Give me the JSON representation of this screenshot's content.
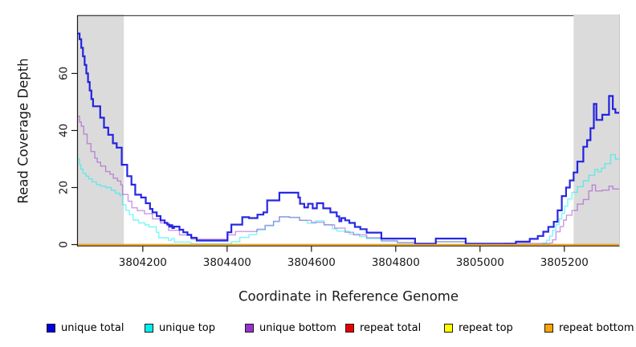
{
  "chart_data": {
    "type": "line",
    "subtype": "step-coverage",
    "title": "",
    "xlabel": "Coordinate in Reference Genome",
    "ylabel": "Read Coverage Depth",
    "xlim": [
      3804046,
      3805330
    ],
    "ylim": [
      0,
      80.4
    ],
    "grid": false,
    "x_tick_values": [
      3804200,
      3804400,
      3804600,
      3804800,
      3805000,
      3805200
    ],
    "x_tick_labels": [
      "3804200",
      "3804400",
      "3804600",
      "3804800",
      "3805000",
      "3805200"
    ],
    "y_tick_values": [
      0,
      20,
      40,
      60
    ],
    "y_tick_labels": [
      "0",
      "20",
      "40",
      "60"
    ],
    "shade_color": "#dbdbdb",
    "axis_color": "#1a1a1a",
    "box_color": "#4d4d4d",
    "shaded_regions": [
      {
        "x0": 3804046,
        "x1": 3804155,
        "meaning": "repeat-masked flank"
      },
      {
        "x0": 3805222,
        "x1": 3805330,
        "meaning": "repeat-masked flank"
      }
    ],
    "series": [
      {
        "name": "unique total",
        "color": "#0202df",
        "points": [
          [
            3804046,
            74
          ],
          [
            3804050,
            72
          ],
          [
            3804054,
            69
          ],
          [
            3804058,
            66
          ],
          [
            3804062,
            63
          ],
          [
            3804066,
            60
          ],
          [
            3804070,
            57
          ],
          [
            3804074,
            54
          ],
          [
            3804078,
            51
          ],
          [
            3804082,
            48.5
          ],
          [
            3804099,
            44.5
          ],
          [
            3804108,
            41
          ],
          [
            3804118,
            38.5
          ],
          [
            3804129,
            35.5
          ],
          [
            3804138,
            34
          ],
          [
            3804150,
            28
          ],
          [
            3804163,
            24
          ],
          [
            3804173,
            21
          ],
          [
            3804182,
            17.5
          ],
          [
            3804196,
            16.5
          ],
          [
            3804207,
            14.5
          ],
          [
            3804217,
            12.5
          ],
          [
            3804223,
            11.3
          ],
          [
            3804233,
            10
          ],
          [
            3804242,
            8.5
          ],
          [
            3804252,
            7.6
          ],
          [
            3804258,
            7
          ],
          [
            3804263,
            6.3
          ],
          [
            3804266,
            6.8
          ],
          [
            3804270,
            5.8
          ],
          [
            3804274,
            6.3
          ],
          [
            3804287,
            5.2
          ],
          [
            3804296,
            4.3
          ],
          [
            3804306,
            3.4
          ],
          [
            3804315,
            2.4
          ],
          [
            3804328,
            1.4
          ],
          [
            3804401,
            4.3
          ],
          [
            3804410,
            7
          ],
          [
            3804436,
            9.6
          ],
          [
            3804452,
            9.3
          ],
          [
            3804472,
            10.5
          ],
          [
            3804486,
            11.3
          ],
          [
            3804495,
            15.5
          ],
          [
            3804524,
            18.2
          ],
          [
            3804569,
            16.5
          ],
          [
            3804573,
            14.3
          ],
          [
            3804583,
            13
          ],
          [
            3804592,
            14.3
          ],
          [
            3804603,
            12.7
          ],
          [
            3804613,
            14.5
          ],
          [
            3804628,
            12.7
          ],
          [
            3804645,
            11.3
          ],
          [
            3804660,
            9.9
          ],
          [
            3804666,
            8.2
          ],
          [
            3804671,
            9.3
          ],
          [
            3804680,
            8.5
          ],
          [
            3804690,
            7.6
          ],
          [
            3804703,
            6.2
          ],
          [
            3804716,
            5.4
          ],
          [
            3804731,
            4.2
          ],
          [
            3804766,
            2.1
          ],
          [
            3804846,
            0.3
          ],
          [
            3804895,
            2.1
          ],
          [
            3804966,
            0.3
          ],
          [
            3805085,
            1
          ],
          [
            3805118,
            2
          ],
          [
            3805137,
            3
          ],
          [
            3805150,
            4.5
          ],
          [
            3805162,
            6.2
          ],
          [
            3805175,
            8
          ],
          [
            3805184,
            12
          ],
          [
            3805194,
            17
          ],
          [
            3805204,
            20
          ],
          [
            3805213,
            22.5
          ],
          [
            3805222,
            25.3
          ],
          [
            3805231,
            29.1
          ],
          [
            3805245,
            34.3
          ],
          [
            3805254,
            36.6
          ],
          [
            3805262,
            40.8
          ],
          [
            3805270,
            49.3
          ],
          [
            3805276,
            43.7
          ],
          [
            3805290,
            45.5
          ],
          [
            3805306,
            52.1
          ],
          [
            3805315,
            47.5
          ],
          [
            3805321,
            46.2
          ]
        ]
      },
      {
        "name": "unique top",
        "color": "#00efef",
        "points": [
          [
            3804046,
            30
          ],
          [
            3804050,
            28
          ],
          [
            3804053,
            26.5
          ],
          [
            3804058,
            25
          ],
          [
            3804065,
            24
          ],
          [
            3804072,
            23
          ],
          [
            3804080,
            22
          ],
          [
            3804090,
            21
          ],
          [
            3804100,
            20.5
          ],
          [
            3804112,
            20
          ],
          [
            3804125,
            19
          ],
          [
            3804135,
            18
          ],
          [
            3804145,
            17.3
          ],
          [
            3804152,
            14
          ],
          [
            3804160,
            12
          ],
          [
            3804168,
            10.5
          ],
          [
            3804177,
            8.6
          ],
          [
            3804190,
            7.6
          ],
          [
            3804205,
            6.9
          ],
          [
            3804215,
            6.2
          ],
          [
            3804232,
            4.3
          ],
          [
            3804238,
            2.4
          ],
          [
            3804261,
            1.5
          ],
          [
            3804268,
            2.1
          ],
          [
            3804275,
            0.9
          ],
          [
            3804314,
            0.3
          ],
          [
            3804410,
            1
          ],
          [
            3804430,
            2.5
          ],
          [
            3804452,
            3.5
          ],
          [
            3804470,
            5.1
          ],
          [
            3804490,
            6.5
          ],
          [
            3804510,
            8
          ],
          [
            3804524,
            9.6
          ],
          [
            3804572,
            8.5
          ],
          [
            3804590,
            7.5
          ],
          [
            3804610,
            8.3
          ],
          [
            3804630,
            7
          ],
          [
            3804650,
            5.5
          ],
          [
            3804661,
            4.7
          ],
          [
            3804690,
            3.7
          ],
          [
            3804714,
            2.8
          ],
          [
            3804731,
            2.1
          ],
          [
            3804766,
            1.1
          ],
          [
            3804804,
            0.6
          ],
          [
            3804846,
            0.1
          ],
          [
            3804895,
            1
          ],
          [
            3804966,
            0.1
          ],
          [
            3805150,
            0.5
          ],
          [
            3805158,
            1.5
          ],
          [
            3805165,
            3
          ],
          [
            3805172,
            5
          ],
          [
            3805180,
            7
          ],
          [
            3805188,
            9
          ],
          [
            3805194,
            11
          ],
          [
            3805201,
            13.5
          ],
          [
            3805208,
            16
          ],
          [
            3805218,
            18.3
          ],
          [
            3805231,
            20.3
          ],
          [
            3805245,
            22.4
          ],
          [
            3805258,
            24.3
          ],
          [
            3805272,
            26.3
          ],
          [
            3805280,
            25.5
          ],
          [
            3805288,
            26.8
          ],
          [
            3805296,
            28.4
          ],
          [
            3805310,
            31.5
          ],
          [
            3805321,
            30
          ]
        ]
      },
      {
        "name": "unique bottom",
        "color": "#9932cc",
        "points": [
          [
            3804046,
            45
          ],
          [
            3804050,
            43
          ],
          [
            3804054,
            41.5
          ],
          [
            3804060,
            38.7
          ],
          [
            3804068,
            35.4
          ],
          [
            3804077,
            32.6
          ],
          [
            3804086,
            30.3
          ],
          [
            3804092,
            28.9
          ],
          [
            3804100,
            27.5
          ],
          [
            3804112,
            25.6
          ],
          [
            3804122,
            24.7
          ],
          [
            3804130,
            23.3
          ],
          [
            3804140,
            22.3
          ],
          [
            3804148,
            20.9
          ],
          [
            3804152,
            17.6
          ],
          [
            3804165,
            15.2
          ],
          [
            3804174,
            12.9
          ],
          [
            3804187,
            11.9
          ],
          [
            3804204,
            10.8
          ],
          [
            3804223,
            9
          ],
          [
            3804242,
            7.6
          ],
          [
            3804261,
            5
          ],
          [
            3804287,
            3.4
          ],
          [
            3804315,
            1.9
          ],
          [
            3804401,
            3.4
          ],
          [
            3804420,
            4.6
          ],
          [
            3804471,
            5.4
          ],
          [
            3804490,
            6.8
          ],
          [
            3804510,
            8.2
          ],
          [
            3804524,
            9.8
          ],
          [
            3804548,
            9.5
          ],
          [
            3804572,
            8.5
          ],
          [
            3804600,
            7.8
          ],
          [
            3804630,
            6.9
          ],
          [
            3804655,
            5.8
          ],
          [
            3804680,
            4.3
          ],
          [
            3804700,
            3.4
          ],
          [
            3804731,
            2.4
          ],
          [
            3804766,
            1.4
          ],
          [
            3804804,
            0.7
          ],
          [
            3804846,
            0.2
          ],
          [
            3804895,
            1
          ],
          [
            3804966,
            0.2
          ],
          [
            3805060,
            0.4
          ],
          [
            3805165,
            0.6
          ],
          [
            3805172,
            1.7
          ],
          [
            3805180,
            4.5
          ],
          [
            3805190,
            6.3
          ],
          [
            3805198,
            8.6
          ],
          [
            3805205,
            10.3
          ],
          [
            3805218,
            12
          ],
          [
            3805231,
            14.2
          ],
          [
            3805245,
            15.8
          ],
          [
            3805258,
            18.8
          ],
          [
            3805266,
            20.9
          ],
          [
            3805274,
            18.8
          ],
          [
            3805290,
            19.1
          ],
          [
            3805306,
            20.5
          ],
          [
            3805315,
            19.5
          ]
        ]
      },
      {
        "name": "repeat total",
        "color": "#e80000",
        "points": [
          [
            3804046,
            0
          ]
        ]
      },
      {
        "name": "repeat top",
        "color": "#ffff00",
        "points": [
          [
            3804046,
            0
          ]
        ]
      },
      {
        "name": "repeat bottom",
        "color": "#ffa500",
        "points": [
          [
            3804046,
            0
          ]
        ]
      }
    ],
    "legend": {
      "position": "bottom",
      "entries": [
        {
          "label": "unique total",
          "color": "#0202df"
        },
        {
          "label": "unique top",
          "color": "#00efef"
        },
        {
          "label": "unique bottom",
          "color": "#9932cc"
        },
        {
          "label": "repeat total",
          "color": "#e80000"
        },
        {
          "label": "repeat top",
          "color": "#ffff00"
        },
        {
          "label": "repeat bottom",
          "color": "#ffa500"
        }
      ]
    }
  }
}
